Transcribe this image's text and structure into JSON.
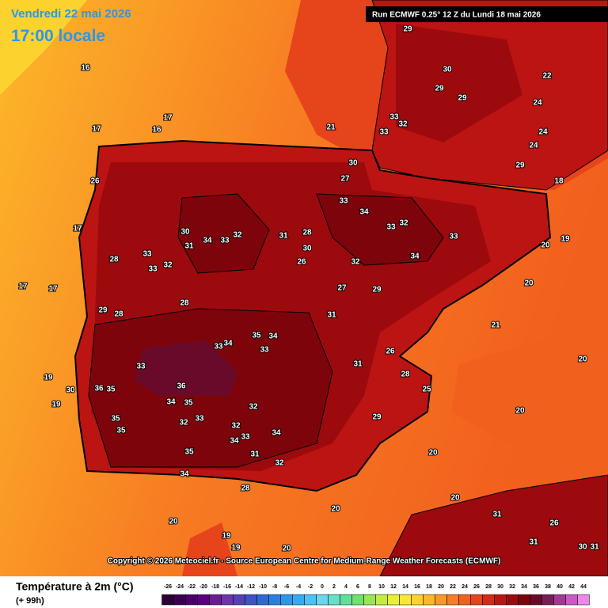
{
  "header": {
    "date": "Vendredi 22 mai 2026",
    "time": "17:00 locale",
    "run": "Run ECMWF 0.25° 12 Z du Lundi 18 mai 2026"
  },
  "copyright": "Copyright © 2026 Meteociel.fr - Source European Centre for Medium-Range Weather Forecasts (ECMWF)",
  "legend": {
    "title": "Température à 2m (°C)",
    "lead": "(+ 99h)",
    "ticks": [
      -26,
      -24,
      -22,
      -20,
      -18,
      -16,
      -14,
      -12,
      -10,
      -8,
      -6,
      -4,
      -2,
      0,
      2,
      4,
      6,
      8,
      10,
      12,
      14,
      16,
      18,
      20,
      22,
      24,
      26,
      28,
      30,
      32,
      34,
      36,
      38,
      40,
      42,
      44
    ],
    "colors": [
      "#2b0038",
      "#3a004f",
      "#4a0066",
      "#5a007d",
      "#6a1c94",
      "#6f33aa",
      "#5540b8",
      "#3f52c6",
      "#2f68d4",
      "#2a80e0",
      "#2a97ea",
      "#31aef2",
      "#48c4f6",
      "#6ad6f0",
      "#66e0c8",
      "#5ee29a",
      "#6ee26c",
      "#98e650",
      "#c4ec3e",
      "#e8f036",
      "#fae634",
      "#fdd22e",
      "#fcb82a",
      "#fa9a26",
      "#f77c22",
      "#f2601e",
      "#e6441a",
      "#d42a16",
      "#bb1412",
      "#9c0a0e",
      "#7e040c",
      "#6a0a2a",
      "#7a1e58",
      "#a23892",
      "#cc58c4",
      "#ee88e6"
    ]
  },
  "temperatures": [
    16,
    17,
    16,
    17,
    21,
    29,
    30,
    29,
    29,
    33,
    32,
    33,
    24,
    22,
    24,
    24,
    29,
    30,
    27,
    26,
    33,
    34,
    33,
    32,
    33,
    34,
    32,
    31,
    28,
    30,
    26,
    34,
    33,
    32,
    30,
    31,
    33,
    33,
    32,
    28,
    29,
    28,
    28,
    27,
    29,
    31,
    26,
    31,
    28,
    25,
    29,
    20,
    20,
    21,
    20,
    20,
    19,
    18,
    35,
    34,
    33,
    34,
    33,
    33,
    36,
    36,
    35,
    34,
    35,
    32,
    33,
    32,
    32,
    34,
    33,
    34,
    35,
    35,
    35,
    34,
    31,
    32,
    28,
    20,
    20,
    20,
    19,
    19,
    20,
    31,
    26,
    31,
    30,
    31,
    20,
    19,
    19,
    30,
    17,
    17,
    17
  ]
}
